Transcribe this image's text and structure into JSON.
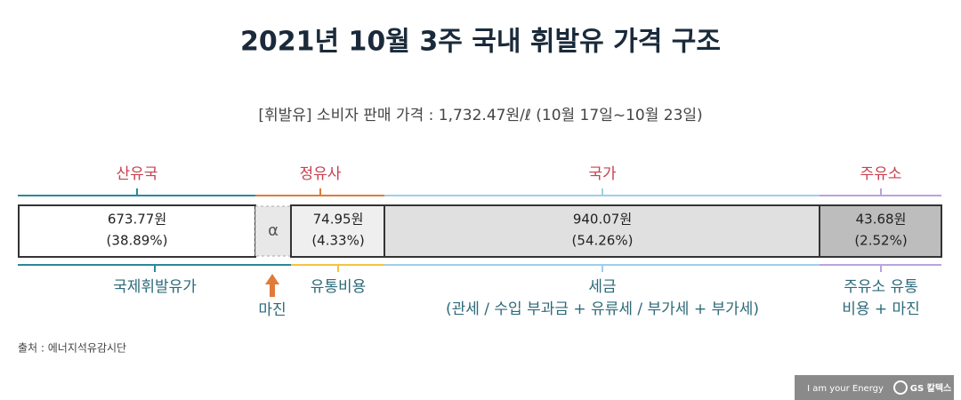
{
  "header": {
    "title": "2021년 10월 3주 국내 휘발유 가격 구조",
    "subtitle": "[휘발유] 소비자 판매 가격 : 1,732.47원/ℓ (10월 17일~10월 23일)"
  },
  "top_groups": [
    "산유국",
    "정유사",
    "국가",
    "주유소"
  ],
  "bar": {
    "cells": [
      {
        "amount": "673.77원",
        "share": "(38.89%)"
      },
      {
        "symbol": "α"
      },
      {
        "amount": "74.95원",
        "share": "(4.33%)"
      },
      {
        "amount": "940.07원",
        "share": "(54.26%)"
      },
      {
        "amount": "43.68원",
        "share": "(2.52%)"
      }
    ]
  },
  "bottom_groups": [
    {
      "lines": [
        "국제휘발유가"
      ]
    },
    {
      "lines": [
        "유통비용"
      ]
    },
    {
      "lines": [
        "세금",
        "(관세 / 수입 부과금 + 유류세 / 부가세 + 부가세)"
      ]
    },
    {
      "lines": [
        "주유소 유통",
        "비용 + 마진"
      ]
    }
  ],
  "margin_note": "마진",
  "source": "출처 : 에너지석유감시단",
  "footer": {
    "slogan": "I am your Energy",
    "brand": "GS 칼텍스"
  }
}
